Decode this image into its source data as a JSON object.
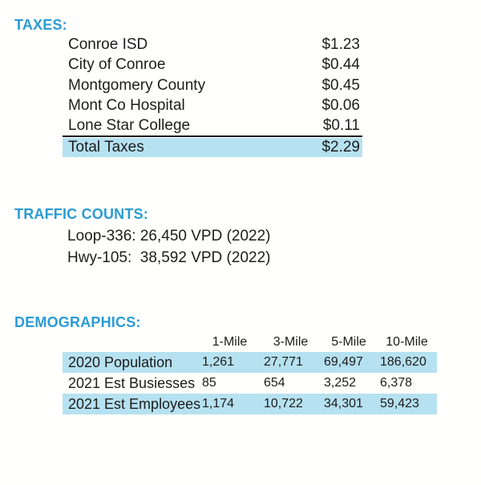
{
  "colors": {
    "accent_blue": "#2b9bd4",
    "row_highlight": "#b6e1f0",
    "text": "#1c1c1c"
  },
  "taxes": {
    "heading": "TAXES:",
    "rows": [
      {
        "label": "Conroe ISD",
        "value": "$1.23"
      },
      {
        "label": "City of Conroe",
        "value": "$0.44"
      },
      {
        "label": "Montgomery County",
        "value": "$0.45"
      },
      {
        "label": "Mont Co Hospital",
        "value": "$0.06"
      },
      {
        "label": "Lone Star College",
        "value": "$0.11"
      }
    ],
    "total": {
      "label": "Total Taxes",
      "value": "$2.29"
    }
  },
  "traffic": {
    "heading": "TRAFFIC COUNTS:",
    "lines": [
      "Loop-336: 26,450 VPD (2022)",
      "Hwy-105:  38,592 VPD (2022)"
    ]
  },
  "demographics": {
    "heading": "DEMOGRAPHICS:",
    "columns": [
      "1-Mile",
      "3-Mile",
      "5-Mile",
      "10-Mile"
    ],
    "rows": [
      {
        "label": "2020 Population",
        "values": [
          "1,261",
          "27,771",
          "69,497",
          "186,620"
        ],
        "highlighted": true
      },
      {
        "label": "2021 Est Busiesses",
        "values": [
          "85",
          "654",
          "3,252",
          "6,378"
        ],
        "highlighted": false
      },
      {
        "label": "2021 Est Employees",
        "values": [
          "1,174",
          "10,722",
          "34,301",
          "59,423"
        ],
        "highlighted": true
      }
    ]
  }
}
